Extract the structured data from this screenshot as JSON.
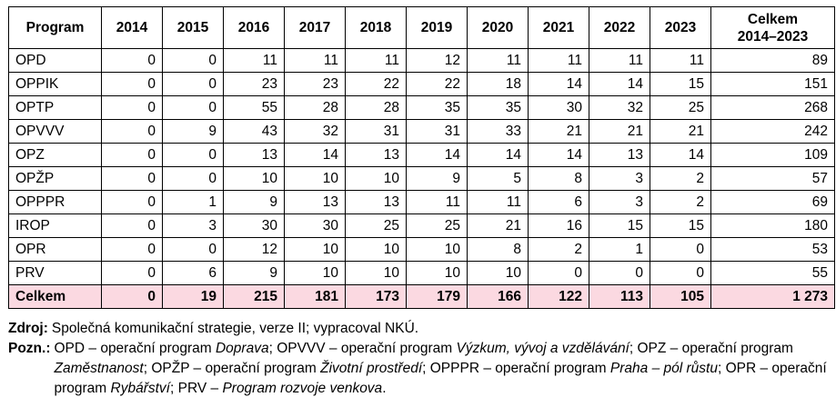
{
  "table": {
    "headers": [
      "Program",
      "2014",
      "2015",
      "2016",
      "2017",
      "2018",
      "2019",
      "2020",
      "2021",
      "2022",
      "2023"
    ],
    "total_header_line1": "Celkem",
    "total_header_line2": "2014–2023",
    "rows": [
      {
        "name": "OPD",
        "values": [
          "0",
          "0",
          "11",
          "11",
          "11",
          "12",
          "11",
          "11",
          "11",
          "11"
        ],
        "total": "89"
      },
      {
        "name": "OPPIK",
        "values": [
          "0",
          "0",
          "23",
          "23",
          "22",
          "22",
          "18",
          "14",
          "14",
          "15"
        ],
        "total": "151"
      },
      {
        "name": "OPTP",
        "values": [
          "0",
          "0",
          "55",
          "28",
          "28",
          "35",
          "35",
          "30",
          "32",
          "25"
        ],
        "total": "268"
      },
      {
        "name": "OPVVV",
        "values": [
          "0",
          "9",
          "43",
          "32",
          "31",
          "31",
          "33",
          "21",
          "21",
          "21"
        ],
        "total": "242"
      },
      {
        "name": "OPZ",
        "values": [
          "0",
          "0",
          "13",
          "14",
          "13",
          "14",
          "14",
          "14",
          "13",
          "14"
        ],
        "total": "109"
      },
      {
        "name": "OPŽP",
        "values": [
          "0",
          "0",
          "10",
          "10",
          "10",
          "9",
          "5",
          "8",
          "3",
          "2"
        ],
        "total": "57"
      },
      {
        "name": "OPPPR",
        "values": [
          "0",
          "1",
          "9",
          "13",
          "13",
          "11",
          "11",
          "6",
          "3",
          "2"
        ],
        "total": "69"
      },
      {
        "name": "IROP",
        "values": [
          "0",
          "3",
          "30",
          "30",
          "25",
          "25",
          "21",
          "16",
          "15",
          "15"
        ],
        "total": "180"
      },
      {
        "name": "OPR",
        "values": [
          "0",
          "0",
          "12",
          "10",
          "10",
          "10",
          "8",
          "2",
          "1",
          "0"
        ],
        "total": "53"
      },
      {
        "name": "PRV",
        "values": [
          "0",
          "6",
          "9",
          "10",
          "10",
          "10",
          "10",
          "0",
          "0",
          "0"
        ],
        "total": "55"
      }
    ],
    "total_row": {
      "name": "Celkem",
      "values": [
        "0",
        "19",
        "215",
        "181",
        "173",
        "179",
        "166",
        "122",
        "113",
        "105"
      ],
      "total": "1 273"
    }
  },
  "source": {
    "label": "Zdroj:",
    "text": "Společná komunikační strategie, verze II; vypracoval NKÚ."
  },
  "note": {
    "label": "Pozn.:",
    "segments": [
      {
        "t": "OPD – operační program ",
        "i": false
      },
      {
        "t": "Doprava",
        "i": true
      },
      {
        "t": "; OPVVV – operační program ",
        "i": false
      },
      {
        "t": "Výzkum, vývoj a vzdělávání",
        "i": true
      },
      {
        "t": "; OPZ – operační program ",
        "i": false
      },
      {
        "t": "Zaměstnanost",
        "i": true
      },
      {
        "t": "; OPŽP – operační program ",
        "i": false
      },
      {
        "t": "Životní prostředí",
        "i": true
      },
      {
        "t": "; OPPPR – operační program ",
        "i": false
      },
      {
        "t": "Praha – pól růstu",
        "i": true
      },
      {
        "t": "; OPR – operační program ",
        "i": false
      },
      {
        "t": "Rybářství",
        "i": true
      },
      {
        "t": "; PRV – ",
        "i": false
      },
      {
        "t": "Program rozvoje venkova",
        "i": true
      },
      {
        "t": ".",
        "i": false
      }
    ]
  }
}
